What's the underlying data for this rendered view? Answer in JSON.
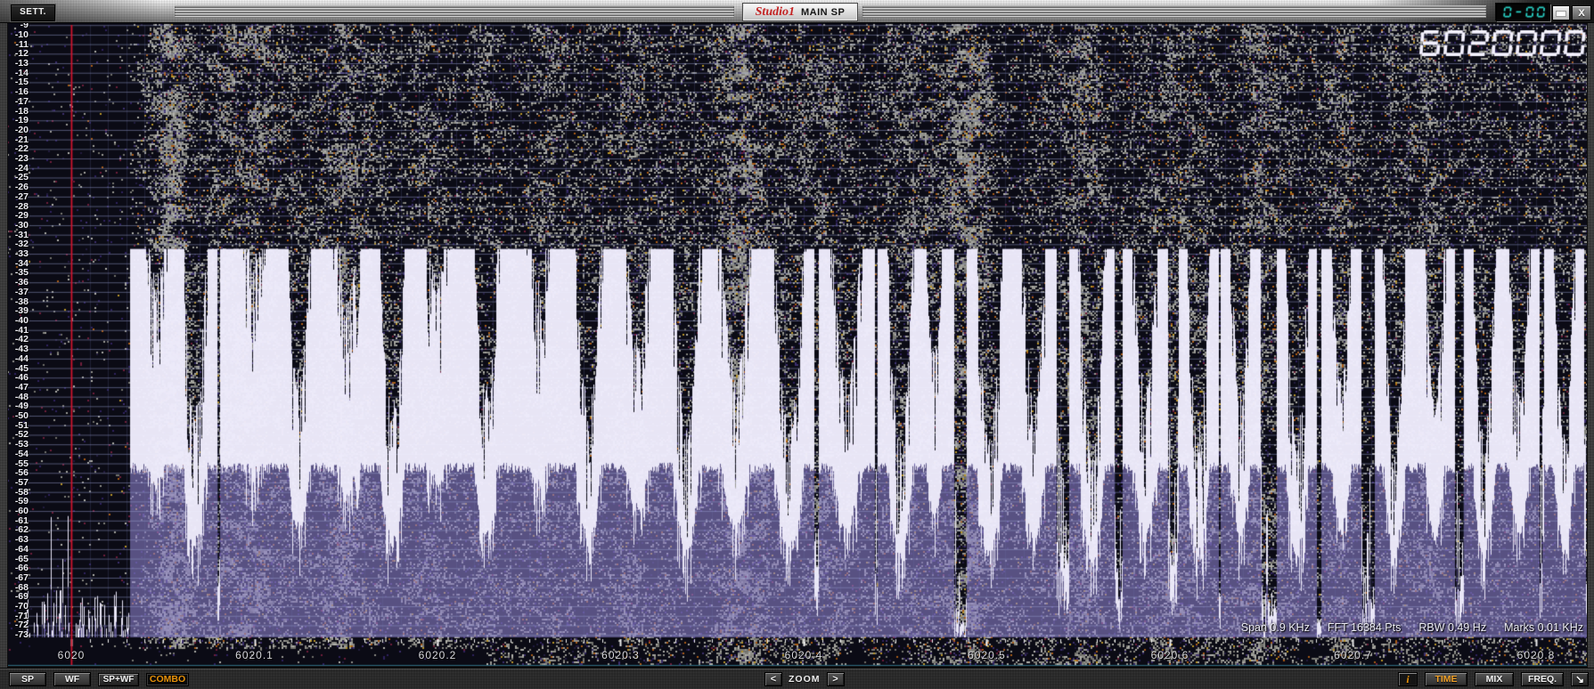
{
  "titlebar": {
    "settings_label": "SETT.",
    "app_name": "Studio1",
    "window_title": "MAIN SP",
    "clock_display": "0-00",
    "minimize": "minimize",
    "close_label": "X"
  },
  "readout": {
    "frequency_display": "6020000"
  },
  "spectrum": {
    "db_labels": [
      "-9",
      "-10",
      "-11",
      "-12",
      "-13",
      "-14",
      "-15",
      "-16",
      "-17",
      "-18",
      "-19",
      "-20",
      "-21",
      "-22",
      "-23",
      "-24",
      "-25",
      "-26",
      "-27",
      "-28",
      "-29",
      "-30",
      "-31",
      "-32",
      "-33",
      "-34",
      "-35",
      "-36",
      "-37",
      "-38",
      "-39",
      "-40",
      "-41",
      "-42",
      "-43",
      "-44",
      "-45",
      "-46",
      "-47",
      "-48",
      "-49",
      "-50",
      "-51",
      "-52",
      "-53",
      "-54",
      "-55",
      "-56",
      "-57",
      "-58",
      "-59",
      "-60",
      "-61",
      "-62",
      "-63",
      "-64",
      "-65",
      "-66",
      "-67",
      "-68",
      "-69",
      "-70",
      "-71",
      "-72",
      "-73"
    ],
    "freq_labels": [
      "6020",
      "6020.1",
      "6020.2",
      "6020.3",
      "6020.4",
      "6020.5",
      "6020.6",
      "6020.7",
      "6020.8"
    ],
    "status": {
      "span": "Span 0.9 KHz",
      "fft": "FFT 16384 Pts",
      "rbw": "RBW 0.49 Hz",
      "marks": "Marks 0.01 KHz"
    },
    "colors": {
      "cursor_red": "#d6142c",
      "trace_white": "#f4f2ff",
      "fill_lavender": "#8d82cc",
      "clock_cyan": "#29d2c6",
      "grid_blue": "#969ecd"
    }
  },
  "toolbar": {
    "sp": "SP",
    "wf": "WF",
    "spwf": "SP+WF",
    "combo": "COMBO",
    "zoom_out": "<",
    "zoom_label": "ZOOM",
    "zoom_in": ">",
    "info": "i",
    "time": "TIME",
    "mix": "MIX",
    "freq": "FREQ.",
    "corner_arrow": "↘"
  }
}
